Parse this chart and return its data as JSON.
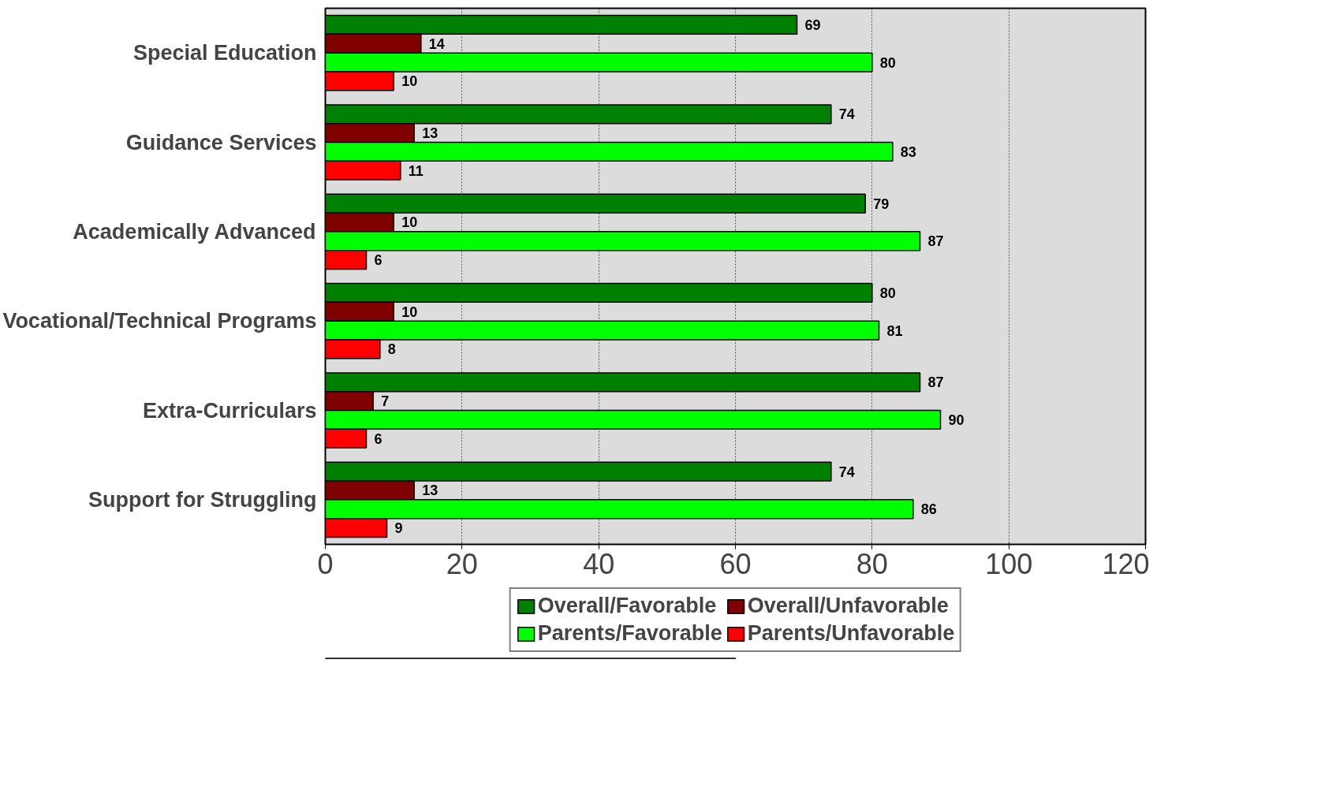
{
  "chart_data": {
    "type": "bar",
    "orientation": "horizontal",
    "categories": [
      "Special Education",
      "Guidance Services",
      "Academically Advanced",
      "Vocational/Technical Programs",
      "Extra-Curriculars",
      "Support for Struggling"
    ],
    "series": [
      {
        "name": "Overall/Favorable",
        "color": "#008000",
        "values": [
          69,
          74,
          79,
          80,
          87,
          74
        ]
      },
      {
        "name": "Overall/Unfavorable",
        "color": "#800000",
        "values": [
          14,
          13,
          10,
          10,
          7,
          13
        ]
      },
      {
        "name": "Parents/Favorable",
        "color": "#00ff00",
        "values": [
          80,
          83,
          87,
          81,
          90,
          86
        ]
      },
      {
        "name": "Parents/Unfavorable",
        "color": "#ff0000",
        "values": [
          10,
          11,
          6,
          8,
          6,
          9
        ]
      }
    ],
    "xlim": [
      0,
      120
    ],
    "xticks": [
      0,
      20,
      40,
      60,
      80,
      100,
      120
    ],
    "grid": "x",
    "legend": "bottom",
    "data_labels": true
  }
}
